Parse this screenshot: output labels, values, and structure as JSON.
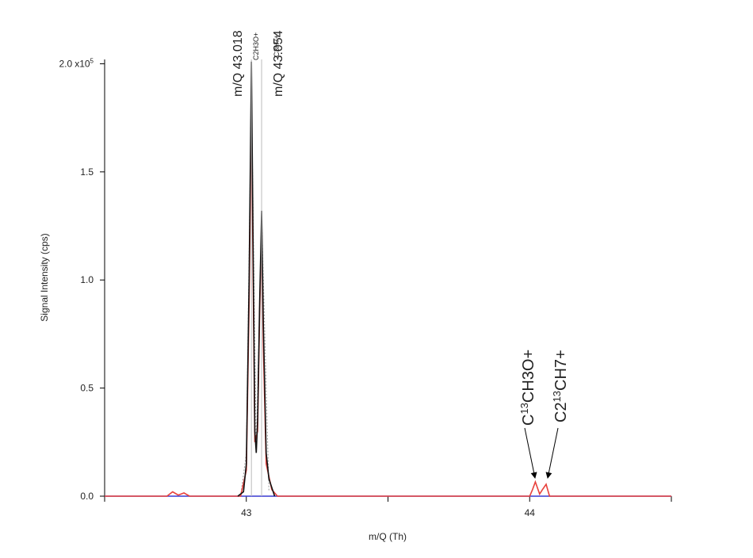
{
  "chart_data": {
    "type": "line",
    "xlabel": "m/Q (Th)",
    "ylabel": "Signal Intensity (cps)",
    "xlim": [
      42.5,
      44.5
    ],
    "xticks": [
      43,
      44
    ],
    "xminorticks": [
      42.5,
      43.5,
      44.5
    ],
    "ylim": [
      0,
      2.02
    ],
    "yticks": [
      {
        "value": 0,
        "label": "0.0"
      },
      {
        "value": 0.5,
        "label": "0.5"
      },
      {
        "value": 1,
        "label": "1.0"
      },
      {
        "value": 1.5,
        "label": "1.5"
      },
      {
        "value": 2,
        "label": "2.0"
      }
    ],
    "y_scale": {
      "base": "x10",
      "exponent": "5"
    },
    "series": [
      {
        "color": "#3a3ad0",
        "x": [
          42.5,
          44.5
        ],
        "values": [
          0,
          0
        ]
      },
      {
        "color": "#999999",
        "dash": true,
        "x": [
          42.98,
          43.0,
          43.018,
          43.035,
          43.054,
          43.08
        ],
        "values": [
          0,
          0.2,
          1.9,
          0.2,
          1.3,
          0.02
        ]
      },
      {
        "color": "#e8413c",
        "x": [
          42.5,
          42.72,
          42.74,
          42.76,
          42.78,
          42.8,
          42.82,
          42.98,
          43.0,
          43.01,
          43.018,
          43.025,
          43.03,
          43.04,
          43.047,
          43.054,
          43.06,
          43.07,
          43.09,
          43.11,
          44.0,
          44.01,
          44.02,
          44.035,
          44.045,
          44.058,
          44.07,
          44.5
        ],
        "values": [
          0,
          0,
          0.02,
          0.005,
          0.015,
          0,
          0,
          0,
          0.12,
          0.9,
          1.82,
          0.9,
          0.25,
          0.3,
          0.85,
          1.25,
          0.7,
          0.15,
          0.03,
          0,
          0,
          0.03,
          0.066,
          0.01,
          0.03,
          0.055,
          0,
          0
        ]
      },
      {
        "color": "#111111",
        "x": [
          42.97,
          42.99,
          43.0,
          43.01,
          43.018,
          43.025,
          43.03,
          43.035,
          43.04,
          43.047,
          43.054,
          43.06,
          43.07,
          43.08,
          43.1
        ],
        "values": [
          0,
          0.02,
          0.15,
          1.0,
          2.01,
          1.0,
          0.3,
          0.2,
          0.35,
          0.9,
          1.32,
          0.8,
          0.2,
          0.08,
          0
        ]
      }
    ],
    "markers": [
      {
        "x": 43.018,
        "label": "m/Q 43.018",
        "formula": "C2H3O+"
      },
      {
        "x": 43.054,
        "label": "m/Q 43.054",
        "formula": "C3H7+"
      }
    ],
    "isotope_labels": [
      {
        "parts": [
          "C",
          "13",
          "CH3O+"
        ]
      },
      {
        "parts": [
          "C2",
          "13",
          "CH7+"
        ]
      }
    ]
  }
}
